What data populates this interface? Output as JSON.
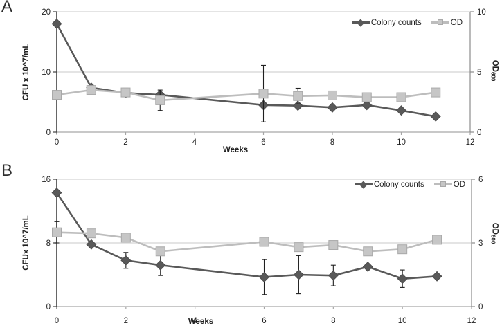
{
  "figure_title": "",
  "colors": {
    "colony_series": "#595959",
    "od_series": "#bdbdbd",
    "od_marker_fill": "#c6c6c6",
    "od_marker_border": "#a9a9a9",
    "gridline": "#c9c9c9",
    "axis_bottom": "#a6a6a6",
    "axis_left": "#404040",
    "axis_right": "#8c8c8c",
    "error_bar": "#1f1f1f",
    "text": "#1f1f1f"
  },
  "chart_data": [
    {
      "type": "line",
      "panel_label": "A",
      "xlabel": "Weeks",
      "ylabel_left": "CFU x 10^7/mL",
      "ylabel_right_main": "OD",
      "ylabel_right_sub": "600",
      "xlim": [
        0,
        12
      ],
      "x_ticks": [
        0,
        2,
        4,
        6,
        8,
        10,
        12
      ],
      "ylim_left": [
        0,
        20
      ],
      "y_left_ticks": [
        0,
        10,
        20
      ],
      "ylim_right": [
        0,
        10
      ],
      "y_right_ticks": [
        0,
        5,
        10
      ],
      "grid": "horizontal",
      "legend_position": "top-right-inside",
      "weeks": [
        0,
        1,
        2,
        3,
        6,
        7,
        8,
        9,
        10,
        11
      ],
      "series": [
        {
          "name": "Colony counts",
          "axis": "left",
          "marker": "diamond",
          "values": [
            18,
            7.4,
            6.5,
            6.2,
            4.5,
            4.4,
            4.1,
            4.5,
            3.6,
            2.6
          ],
          "errors": [
            0,
            0,
            0,
            0,
            0,
            0,
            0,
            0,
            0,
            0
          ]
        },
        {
          "name": "OD",
          "axis": "right",
          "marker": "square",
          "values": [
            3.1,
            3.5,
            3.3,
            2.65,
            3.2,
            3.0,
            3.05,
            2.9,
            2.9,
            3.3
          ],
          "errors": [
            0,
            0,
            0.35,
            0.85,
            2.35,
            0.65,
            0.2,
            0,
            0.2,
            0
          ]
        }
      ]
    },
    {
      "type": "line",
      "panel_label": "B",
      "xlabel": "Weeks",
      "ylabel_left": "CFUx 10^7/mL",
      "ylabel_right_main": "OD",
      "ylabel_right_sub": "600",
      "xlim": [
        0,
        12
      ],
      "x_ticks": [
        0,
        2,
        4,
        6,
        8,
        10,
        12
      ],
      "ylim_left": [
        0,
        16
      ],
      "y_left_ticks": [
        0,
        8,
        16
      ],
      "ylim_right": [
        0,
        6
      ],
      "y_right_ticks": [
        0,
        3,
        6
      ],
      "grid": "horizontal",
      "legend_position": "top-right-inside",
      "weeks": [
        0,
        1,
        2,
        3,
        6,
        7,
        8,
        9,
        10,
        11
      ],
      "series": [
        {
          "name": "Colony counts",
          "axis": "left",
          "marker": "diamond",
          "values": [
            14.3,
            7.8,
            5.8,
            5.2,
            3.7,
            4.0,
            3.9,
            5.0,
            3.5,
            3.8
          ],
          "errors": [
            0,
            0,
            1.0,
            1.3,
            2.2,
            2.4,
            1.3,
            0,
            1.1,
            0
          ]
        },
        {
          "name": "OD",
          "axis": "right",
          "marker": "square",
          "values": [
            3.5,
            3.45,
            3.25,
            2.6,
            3.05,
            2.8,
            2.9,
            2.6,
            2.7,
            3.15
          ],
          "errors": [
            0.5,
            0,
            0,
            0,
            0,
            0,
            0,
            0,
            0,
            0
          ]
        }
      ]
    }
  ]
}
